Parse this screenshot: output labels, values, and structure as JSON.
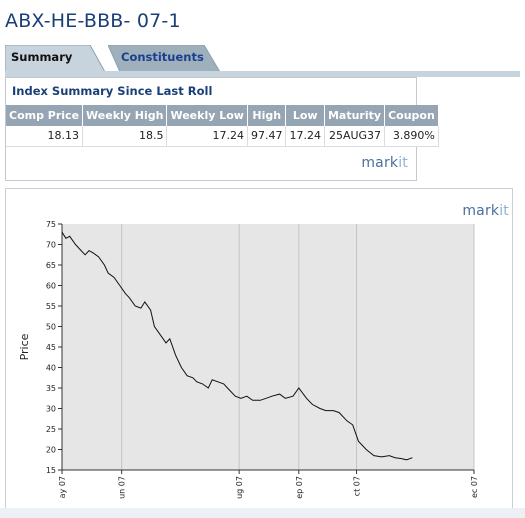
{
  "page_title": "ABX-HE-BBB- 07-1",
  "tabs": [
    {
      "label": "Summary",
      "active": true
    },
    {
      "label": "Constituents",
      "active": false
    }
  ],
  "summary": {
    "heading": "Index Summary Since Last Roll",
    "columns": [
      "Comp Price",
      "Weekly High",
      "Weekly Low",
      "High",
      "Low",
      "Maturity",
      "Coupon"
    ],
    "row": [
      "18.13",
      "18.5",
      "17.24",
      "97.47",
      "17.24",
      "25AUG37",
      "3.890%"
    ]
  },
  "brand": {
    "main": "mark",
    "suffix": "it"
  },
  "colors": {
    "title": "#1b3f78",
    "header_bg": "#95a5b3",
    "plot_bg": "#e6e6e6",
    "line": "#111111"
  },
  "chart_data": {
    "type": "line",
    "ylabel": "Price",
    "ylim": [
      15,
      75
    ],
    "yticks": [
      15,
      20,
      25,
      30,
      35,
      40,
      45,
      50,
      55,
      60,
      65,
      70,
      75
    ],
    "xlim": [
      "2007-05-01",
      "2007-12-01"
    ],
    "xticks": [
      {
        "date": "2007-05-01",
        "label": "ay 07"
      },
      {
        "date": "2007-06-01",
        "label": "un 07"
      },
      {
        "date": "2007-08-01",
        "label": "ug 07"
      },
      {
        "date": "2007-09-01",
        "label": "ep 07"
      },
      {
        "date": "2007-10-01",
        "label": "ct 07"
      },
      {
        "date": "2007-12-01",
        "label": "ec 07"
      }
    ],
    "grid": true,
    "series": [
      {
        "x": [
          "2007-05-01",
          "2007-05-03",
          "2007-05-05",
          "2007-05-08",
          "2007-05-10",
          "2007-05-13",
          "2007-05-15",
          "2007-05-17",
          "2007-05-20",
          "2007-05-23",
          "2007-05-25",
          "2007-05-28",
          "2007-05-31",
          "2007-06-03",
          "2007-06-05",
          "2007-06-08",
          "2007-06-11",
          "2007-06-13",
          "2007-06-16",
          "2007-06-18",
          "2007-06-21",
          "2007-06-24",
          "2007-06-26",
          "2007-06-29",
          "2007-07-02",
          "2007-07-05",
          "2007-07-08",
          "2007-07-10",
          "2007-07-13",
          "2007-07-16",
          "2007-07-18",
          "2007-07-21",
          "2007-07-24",
          "2007-07-27",
          "2007-07-30",
          "2007-08-02",
          "2007-08-05",
          "2007-08-08",
          "2007-08-12",
          "2007-08-15",
          "2007-08-18",
          "2007-08-22",
          "2007-08-25",
          "2007-08-29",
          "2007-09-01",
          "2007-09-05",
          "2007-09-08",
          "2007-09-12",
          "2007-09-15",
          "2007-09-19",
          "2007-09-22",
          "2007-09-26",
          "2007-09-29",
          "2007-10-02",
          "2007-10-06",
          "2007-10-10",
          "2007-10-14",
          "2007-10-18",
          "2007-10-21",
          "2007-10-24",
          "2007-10-27",
          "2007-10-30"
        ],
        "y": [
          73,
          71.5,
          72,
          70,
          69,
          67.5,
          68.5,
          68,
          67,
          65,
          63,
          62,
          60,
          58,
          57,
          55,
          54.5,
          56,
          54,
          50,
          48,
          46,
          47,
          43,
          40,
          38,
          37.5,
          36.5,
          36,
          35,
          37,
          36.5,
          36,
          34.5,
          33,
          32.5,
          33,
          32,
          32,
          32.5,
          33,
          33.5,
          32.5,
          33,
          35,
          32.5,
          31,
          30,
          29.5,
          29.5,
          29,
          27,
          26,
          22,
          20,
          18.5,
          18.2,
          18.5,
          18,
          17.8,
          17.5,
          18
        ]
      }
    ]
  }
}
